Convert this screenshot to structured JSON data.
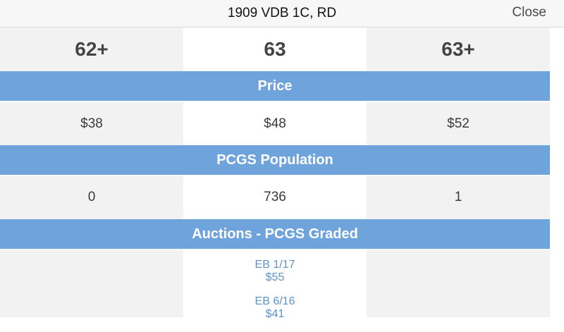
{
  "header": {
    "title": "1909 VDB 1C, RD",
    "close_label": "Close"
  },
  "grades": [
    "62+",
    "63",
    "63+"
  ],
  "sections": {
    "price": "Price",
    "population": "PCGS Population",
    "auctions": "Auctions - PCGS Graded"
  },
  "prices": [
    "$38",
    "$48",
    "$52"
  ],
  "population": [
    "0",
    "736",
    "1"
  ],
  "auctions": {
    "col_63": [
      {
        "event": "EB 1/17",
        "price": "$55"
      },
      {
        "event": "EB 6/16",
        "price": "$41"
      }
    ]
  },
  "colors": {
    "section_bar": "#6fa3dc",
    "link": "#5d93c8",
    "grey_cell": "#f2f2f2"
  }
}
